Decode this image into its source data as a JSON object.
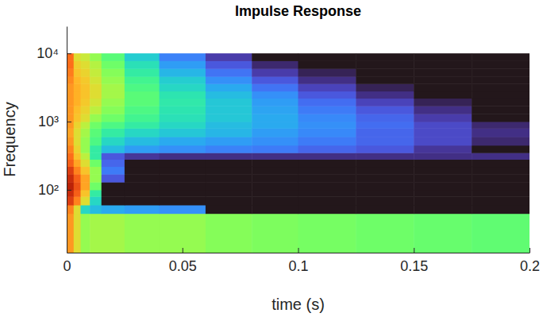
{
  "chart_data": {
    "type": "heatmap",
    "title": "Impulse Response",
    "x_label": "time (s)",
    "y_label": "Frequency",
    "log": "y",
    "xlim": [
      0,
      0.2
    ],
    "ylim": [
      12,
      25000
    ],
    "xticks": [
      0,
      0.05,
      0.1,
      0.15,
      0.2
    ],
    "yticks": [
      {
        "value": 100,
        "label": "10²"
      },
      {
        "value": 1000,
        "label": "10³"
      },
      {
        "value": 10000,
        "label": "10⁴"
      }
    ],
    "x_bins": [
      0,
      0.003,
      0.006,
      0.01,
      0.015,
      0.025,
      0.04,
      0.06,
      0.08,
      0.1,
      0.125,
      0.15,
      0.175,
      0.2
    ],
    "y_bins": [
      12,
      45,
      60,
      80,
      100,
      130,
      170,
      220,
      280,
      350,
      450,
      600,
      800,
      1000,
      1300,
      1700,
      2200,
      2800,
      3600,
      4600,
      6000,
      7800,
      10000
    ],
    "cells": [
      [
        0.72,
        0.6,
        0.5,
        0.52,
        0.52,
        0.5,
        0.5,
        0.48,
        0.47,
        0.46,
        0.45,
        0.44,
        0.43
      ],
      [
        0.75,
        0.6,
        0.3,
        0.25,
        0.22,
        0.2,
        0.18,
        0,
        0,
        0,
        0,
        0,
        0
      ],
      [
        0.85,
        0.75,
        0.6,
        0.3,
        0,
        0,
        0,
        0,
        0,
        0,
        0,
        0,
        0
      ],
      [
        0.88,
        0.8,
        0.65,
        0.35,
        0,
        0,
        0,
        0,
        0,
        0,
        0,
        0,
        0
      ],
      [
        0.9,
        0.82,
        0.7,
        0.45,
        0,
        0,
        0,
        0,
        0,
        0,
        0,
        0,
        0
      ],
      [
        0.88,
        0.8,
        0.7,
        0.5,
        0.1,
        0,
        0,
        0,
        0,
        0,
        0,
        0,
        0
      ],
      [
        0.85,
        0.75,
        0.65,
        0.5,
        0.15,
        0,
        0,
        0,
        0,
        0,
        0,
        0,
        0
      ],
      [
        0.8,
        0.7,
        0.6,
        0.45,
        0.12,
        0,
        0,
        0,
        0,
        0,
        0,
        0,
        0
      ],
      [
        0.78,
        0.65,
        0.55,
        0.35,
        0.1,
        0.05,
        0.04,
        0.04,
        0.04,
        0.04,
        0.04,
        0.04,
        0.04
      ],
      [
        0.75,
        0.62,
        0.5,
        0.35,
        0.25,
        0.2,
        0.18,
        0.16,
        0.15,
        0.12,
        0.1,
        0.05,
        0
      ],
      [
        0.72,
        0.6,
        0.5,
        0.4,
        0.3,
        0.25,
        0.22,
        0.2,
        0.18,
        0.15,
        0.12,
        0.08,
        0.03
      ],
      [
        0.7,
        0.6,
        0.52,
        0.42,
        0.35,
        0.3,
        0.27,
        0.24,
        0.2,
        0.17,
        0.12,
        0.08,
        0.04
      ],
      [
        0.72,
        0.62,
        0.55,
        0.45,
        0.4,
        0.35,
        0.3,
        0.25,
        0.22,
        0.18,
        0.13,
        0.08,
        0.03
      ],
      [
        0.72,
        0.65,
        0.6,
        0.5,
        0.45,
        0.38,
        0.32,
        0.27,
        0.22,
        0.17,
        0.12,
        0.06,
        0
      ],
      [
        0.72,
        0.66,
        0.62,
        0.55,
        0.48,
        0.4,
        0.33,
        0.27,
        0.21,
        0.15,
        0.1,
        0.04,
        0
      ],
      [
        0.72,
        0.68,
        0.64,
        0.58,
        0.5,
        0.42,
        0.34,
        0.27,
        0.2,
        0.13,
        0.07,
        0.02,
        0
      ],
      [
        0.72,
        0.68,
        0.65,
        0.6,
        0.52,
        0.42,
        0.33,
        0.25,
        0.18,
        0.1,
        0.04,
        0,
        0
      ],
      [
        0.72,
        0.68,
        0.65,
        0.6,
        0.52,
        0.4,
        0.3,
        0.22,
        0.14,
        0.07,
        0.02,
        0,
        0
      ],
      [
        0.74,
        0.67,
        0.64,
        0.58,
        0.5,
        0.38,
        0.28,
        0.18,
        0.1,
        0.04,
        0,
        0,
        0
      ],
      [
        0.76,
        0.65,
        0.62,
        0.56,
        0.48,
        0.35,
        0.24,
        0.14,
        0.06,
        0.02,
        0,
        0,
        0
      ],
      [
        0.78,
        0.63,
        0.6,
        0.54,
        0.45,
        0.32,
        0.2,
        0.1,
        0.03,
        0,
        0,
        0,
        0
      ],
      [
        0.78,
        0.6,
        0.57,
        0.5,
        0.42,
        0.28,
        0.16,
        0.06,
        0,
        0,
        0,
        0,
        0
      ]
    ]
  }
}
